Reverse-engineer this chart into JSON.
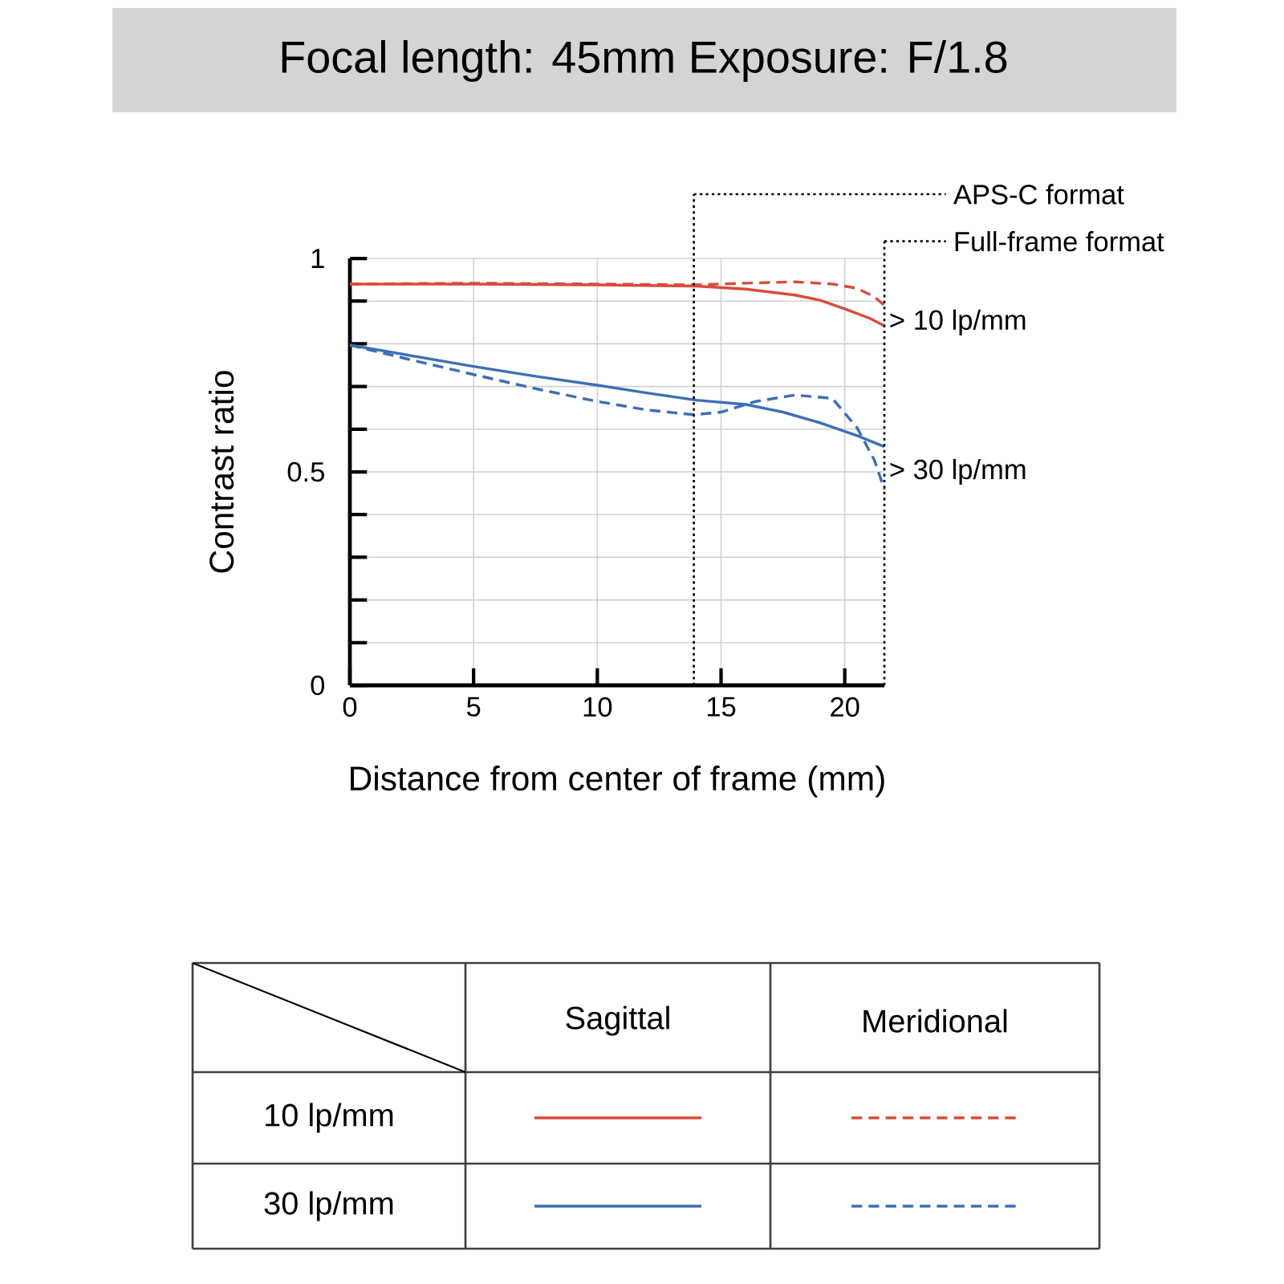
{
  "chart_data": {
    "type": "line",
    "title": "Focal length: 45mm  Exposure: F/1.8",
    "xlabel": "Distance from center of frame (mm)",
    "ylabel": "Contrast ratio",
    "xlim": [
      0,
      21.6
    ],
    "ylim": [
      0,
      1
    ],
    "xticks": [
      0,
      5,
      10,
      15,
      20
    ],
    "yticks": [
      0,
      {
        "value": 0.1,
        "label": null
      },
      {
        "value": 0.2,
        "label": null
      },
      {
        "value": 0.3,
        "label": null
      },
      {
        "value": 0.4,
        "label": null
      },
      0.5,
      {
        "value": 0.6,
        "label": null
      },
      {
        "value": 0.7,
        "label": null
      },
      {
        "value": 0.8,
        "label": null
      },
      {
        "value": 0.9,
        "label": null
      },
      1
    ],
    "grid": true,
    "series": [
      {
        "color": "#d94b3c",
        "line_style": "solid",
        "x": [
          0,
          5,
          10,
          14,
          16,
          18,
          19,
          20,
          21,
          21.6
        ],
        "values": [
          0.94,
          0.94,
          0.938,
          0.935,
          0.928,
          0.914,
          0.902,
          0.882,
          0.86,
          0.842
        ]
      },
      {
        "color": "#d94b3c",
        "line_style": "dashed",
        "x": [
          0,
          5,
          10,
          14,
          16,
          18,
          19.5,
          20.5,
          21.2,
          21.6
        ],
        "values": [
          0.94,
          0.942,
          0.94,
          0.938,
          0.942,
          0.945,
          0.94,
          0.93,
          0.91,
          0.89
        ]
      },
      {
        "color": "#3d6fb6",
        "line_style": "solid",
        "x": [
          0,
          2.5,
          5,
          7.5,
          10,
          12,
          14,
          16,
          17.5,
          19,
          20.5,
          21.6
        ],
        "values": [
          0.797,
          0.772,
          0.747,
          0.724,
          0.703,
          0.685,
          0.668,
          0.658,
          0.64,
          0.615,
          0.585,
          0.559
        ]
      },
      {
        "color": "#3d6fb6",
        "line_style": "dashed",
        "x": [
          0,
          2.5,
          5,
          7.5,
          10,
          12,
          13.9,
          15,
          16.4,
          18,
          19.5,
          20.5,
          21.2,
          21.6
        ],
        "values": [
          0.797,
          0.762,
          0.728,
          0.695,
          0.665,
          0.645,
          0.634,
          0.64,
          0.665,
          0.68,
          0.672,
          0.603,
          0.527,
          0.459
        ]
      }
    ],
    "ref_lines": [
      {
        "axis": "x",
        "value": 13.9,
        "label": "APS-C format",
        "line_style": "dotted",
        "color": "#000000"
      },
      {
        "axis": "x",
        "value": 21.6,
        "label": "Full-frame format",
        "line_style": "dotted",
        "color": "#000000"
      }
    ],
    "annotations": [
      {
        "text": "> 10 lp/mm",
        "x": 21.6,
        "y": 0.85
      },
      {
        "text": "> 30 lp/mm",
        "x": 21.6,
        "y": 0.5
      },
      "Sagittal",
      "Meridional",
      "10 lp/mm",
      "30 lp/mm"
    ]
  }
}
